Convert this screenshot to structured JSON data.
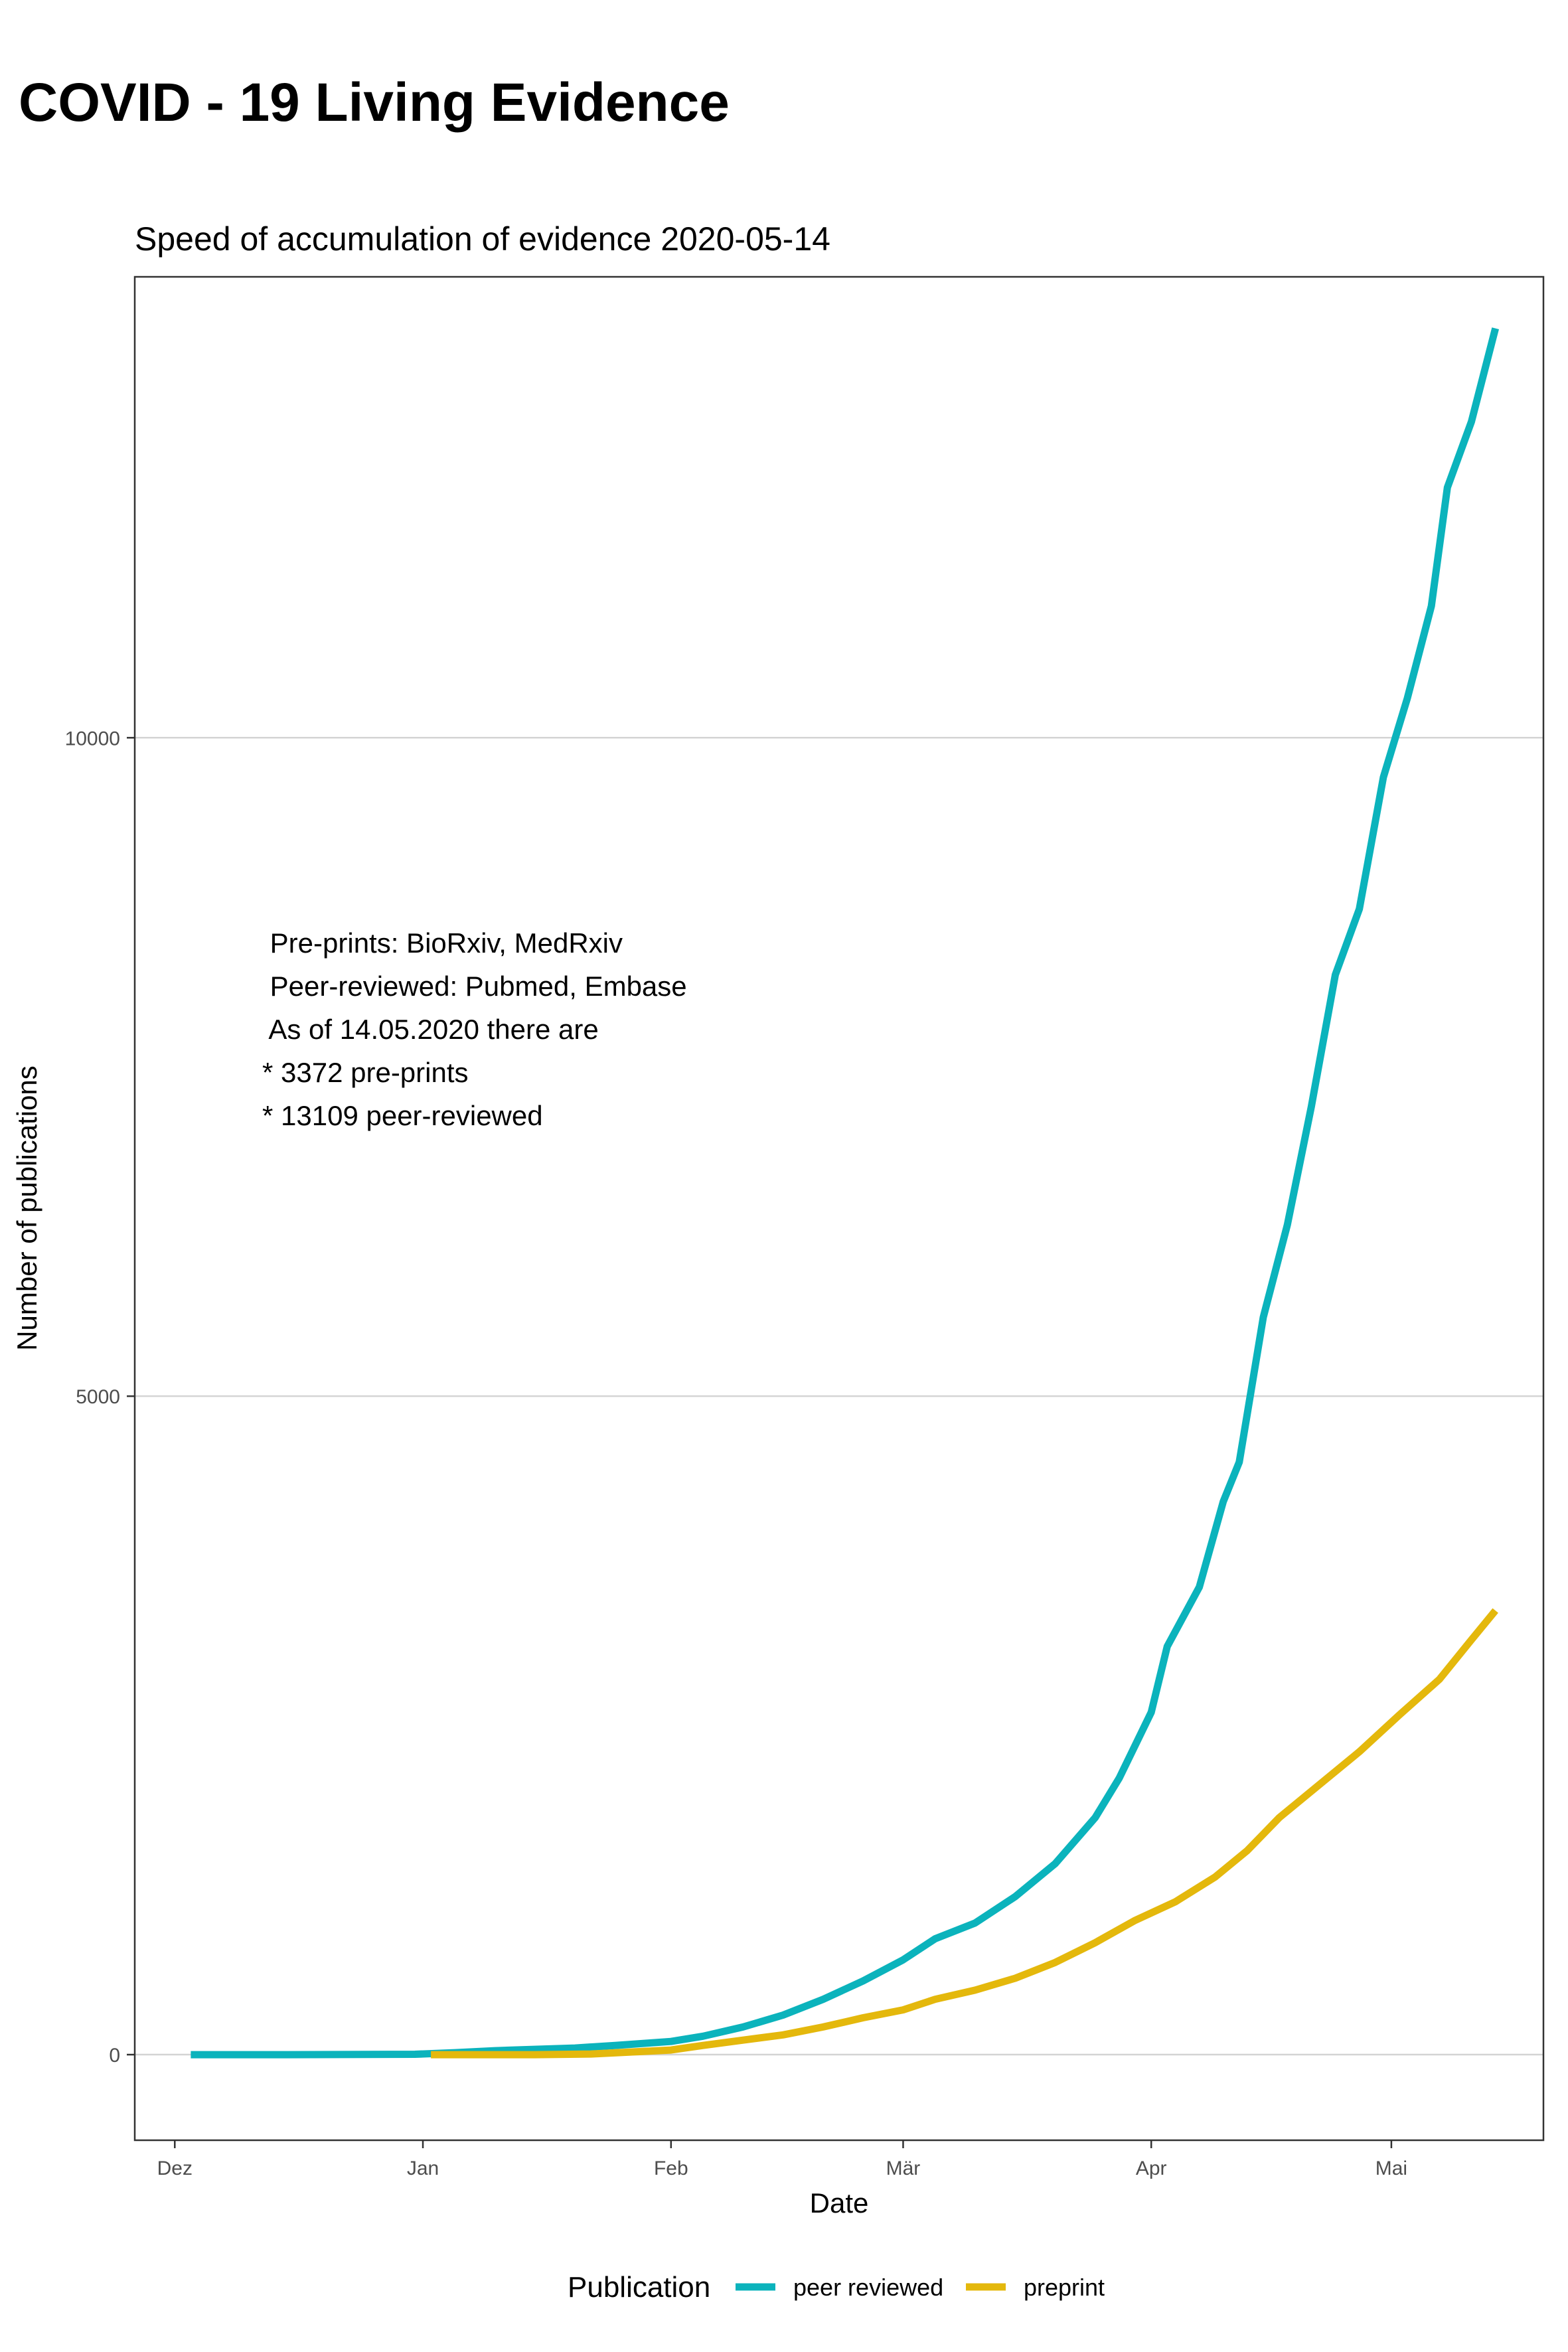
{
  "header": {
    "title": "COVID - 19 Living Evidence"
  },
  "chart_data": {
    "type": "line",
    "title": "Speed of accumulation of evidence 2020-05-14",
    "xlabel": "Date",
    "ylabel": "Number of publications",
    "x_ticks": [
      {
        "label": "Dez",
        "date": "2019-12-01"
      },
      {
        "label": "Jan",
        "date": "2020-01-01"
      },
      {
        "label": "Feb",
        "date": "2020-02-01"
      },
      {
        "label": "Mär",
        "date": "2020-03-01"
      },
      {
        "label": "Apr",
        "date": "2020-04-01"
      },
      {
        "label": "Mai",
        "date": "2020-05-01"
      }
    ],
    "y_ticks": [
      0,
      5000,
      10000
    ],
    "xlim": [
      "2019-11-26",
      "2020-05-20"
    ],
    "ylim": [
      -650,
      13500
    ],
    "grid": true,
    "legend": {
      "title": "Publication",
      "position": "bottom"
    },
    "annotation": [
      " Pre-prints: BioRxiv, MedRxiv",
      " Peer-reviewed: Pubmed, Embase",
      " As of 14.05.2020 there are",
      "* 3372 pre-prints",
      "* 13109 peer-reviewed"
    ],
    "series": [
      {
        "name": "peer reviewed",
        "color": "#0BB3BC",
        "points": [
          [
            "2019-12-03",
            0
          ],
          [
            "2019-12-15",
            0
          ],
          [
            "2019-12-31",
            3
          ],
          [
            "2020-01-05",
            15
          ],
          [
            "2020-01-10",
            30
          ],
          [
            "2020-01-20",
            50
          ],
          [
            "2020-01-25",
            70
          ],
          [
            "2020-02-01",
            100
          ],
          [
            "2020-02-05",
            140
          ],
          [
            "2020-02-10",
            210
          ],
          [
            "2020-02-15",
            300
          ],
          [
            "2020-02-20",
            420
          ],
          [
            "2020-02-25",
            560
          ],
          [
            "2020-03-01",
            720
          ],
          [
            "2020-03-05",
            880
          ],
          [
            "2020-03-10",
            1000
          ],
          [
            "2020-03-15",
            1200
          ],
          [
            "2020-03-20",
            1450
          ],
          [
            "2020-03-25",
            1800
          ],
          [
            "2020-03-28",
            2100
          ],
          [
            "2020-04-01",
            2600
          ],
          [
            "2020-04-03",
            3100
          ],
          [
            "2020-04-07",
            3550
          ],
          [
            "2020-04-10",
            4200
          ],
          [
            "2020-04-12",
            4500
          ],
          [
            "2020-04-15",
            5600
          ],
          [
            "2020-04-18",
            6300
          ],
          [
            "2020-04-21",
            7200
          ],
          [
            "2020-04-24",
            8200
          ],
          [
            "2020-04-27",
            8700
          ],
          [
            "2020-04-30",
            9700
          ],
          [
            "2020-05-03",
            10300
          ],
          [
            "2020-05-06",
            11000
          ],
          [
            "2020-05-08",
            11900
          ],
          [
            "2020-05-11",
            12400
          ],
          [
            "2020-05-14",
            13109
          ]
        ]
      },
      {
        "name": "preprint",
        "color": "#E4B80C",
        "points": [
          [
            "2020-01-02",
            0
          ],
          [
            "2020-01-15",
            0
          ],
          [
            "2020-01-22",
            5
          ],
          [
            "2020-02-01",
            35
          ],
          [
            "2020-02-05",
            70
          ],
          [
            "2020-02-10",
            110
          ],
          [
            "2020-02-15",
            150
          ],
          [
            "2020-02-20",
            210
          ],
          [
            "2020-02-25",
            280
          ],
          [
            "2020-03-01",
            340
          ],
          [
            "2020-03-05",
            420
          ],
          [
            "2020-03-10",
            490
          ],
          [
            "2020-03-15",
            580
          ],
          [
            "2020-03-20",
            700
          ],
          [
            "2020-03-25",
            850
          ],
          [
            "2020-03-30",
            1020
          ],
          [
            "2020-04-04",
            1160
          ],
          [
            "2020-04-09",
            1350
          ],
          [
            "2020-04-13",
            1550
          ],
          [
            "2020-04-17",
            1800
          ],
          [
            "2020-04-22",
            2050
          ],
          [
            "2020-04-27",
            2300
          ],
          [
            "2020-05-02",
            2580
          ],
          [
            "2020-05-07",
            2850
          ],
          [
            "2020-05-11",
            3150
          ],
          [
            "2020-05-14",
            3372
          ]
        ]
      }
    ]
  }
}
